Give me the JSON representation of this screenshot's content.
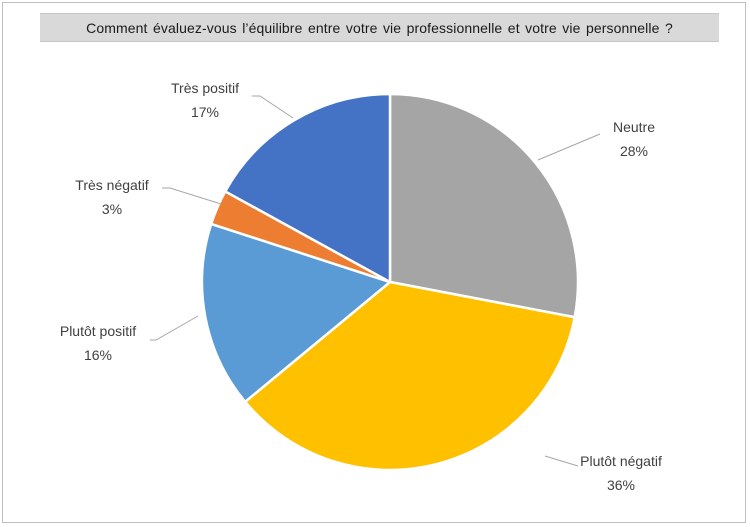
{
  "chart_data": {
    "type": "pie",
    "title": "Comment évaluez-vous l’équilibre entre votre vie professionnelle et votre vie personnelle ?",
    "slices": [
      {
        "label": "Neutre",
        "value": 28,
        "value_label": "28%",
        "color": "#a5a5a5"
      },
      {
        "label": "Plutôt négatif",
        "value": 36,
        "value_label": "36%",
        "color": "#ffc000"
      },
      {
        "label": "Plutôt positif",
        "value": 16,
        "value_label": "16%",
        "color": "#5b9bd5"
      },
      {
        "label": "Très négatif",
        "value": 3,
        "value_label": "3%",
        "color": "#ed7d31"
      },
      {
        "label": "Très positif",
        "value": 17,
        "value_label": "17%",
        "color": "#4472c4"
      }
    ]
  }
}
